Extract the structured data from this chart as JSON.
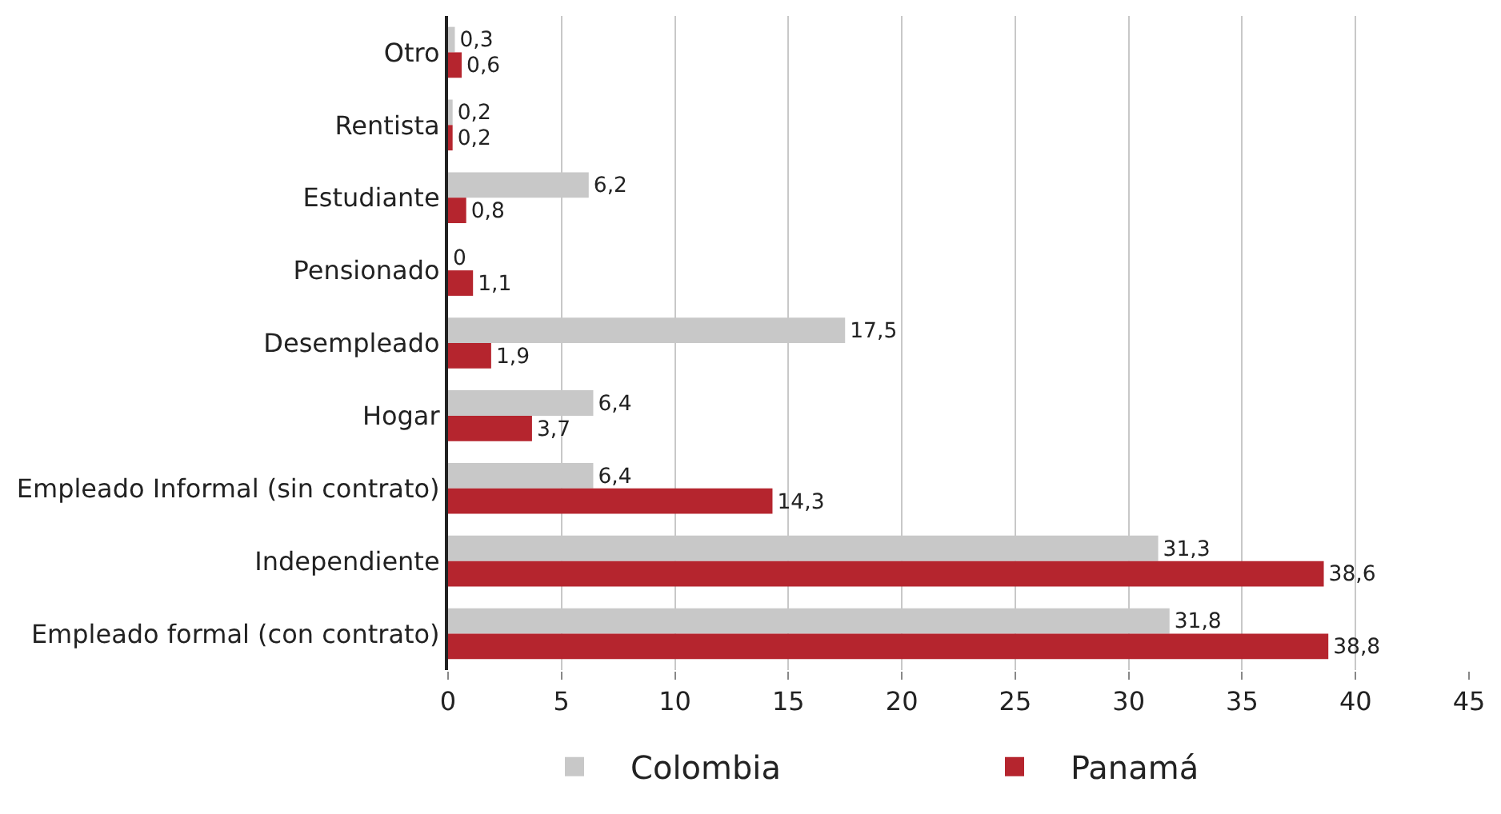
{
  "chart_data": {
    "type": "bar",
    "orientation": "horizontal",
    "categories": [
      "Otro",
      "Rentista",
      "Estudiante",
      "Pensionado",
      "Desempleado",
      "Hogar",
      "Empleado Informal (sin contrato)",
      "Independiente",
      "Empleado formal (con contrato)"
    ],
    "series": [
      {
        "name": "Colombia",
        "color": "#c8c8c8",
        "values": [
          0.3,
          0.2,
          6.2,
          0,
          17.5,
          6.4,
          6.4,
          31.3,
          31.8
        ],
        "value_labels": [
          "0,3",
          "0,2",
          "6,2",
          "0",
          "17,5",
          "6,4",
          "6,4",
          "31,3",
          "31,8"
        ]
      },
      {
        "name": "Panamá",
        "color": "#b5252e",
        "values": [
          0.6,
          0.2,
          0.8,
          1.1,
          1.9,
          3.7,
          14.3,
          38.6,
          38.8
        ],
        "value_labels": [
          "0,6",
          "0,2",
          "0,8",
          "1,1",
          "1,9",
          "3,7",
          "14,3",
          "38,6",
          "38,8"
        ]
      }
    ],
    "xlim": [
      0,
      45
    ],
    "xticks": [
      0,
      5,
      10,
      15,
      20,
      25,
      30,
      35,
      40,
      45
    ],
    "grid": "x",
    "legend": "bottom"
  }
}
